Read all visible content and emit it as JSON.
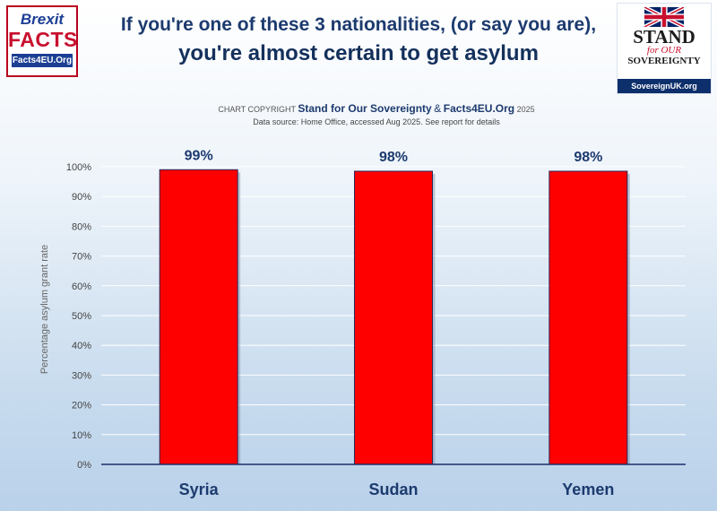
{
  "logos": {
    "left": {
      "line1": "Brexit",
      "line2": "FACTS",
      "line3": "Facts4EU.Org"
    },
    "right": {
      "line1": "STAND",
      "line2": "for OUR",
      "line3": "SOVEREIGNTY",
      "line4": "SovereignUK.org"
    }
  },
  "header": {
    "title_line1": "If you're one of these 3 nationalities, (or say you are),",
    "title_line2": "you're almost certain to get asylum"
  },
  "credits": {
    "prefix": "CHART COPYRIGHT",
    "org1": "Stand for Our Sovereignty",
    "amp": "&",
    "org2": "Facts4EU.Org",
    "year": "2025",
    "source": "Data source: Home Office, accessed Aug 2025.  See report for details"
  },
  "colors": {
    "bar": "#ff0000",
    "bar_border": "#2a2a5a",
    "title": "#1c3a6e",
    "axis": "#1f2d6b"
  },
  "chart_data": {
    "type": "bar",
    "categories": [
      "Syria",
      "Sudan",
      "Yemen"
    ],
    "values": [
      99,
      98.5,
      98.5
    ],
    "data_labels": [
      "99%",
      "98%",
      "98%"
    ],
    "ylabel": "Percentage asylum grant rate",
    "ylim": [
      0,
      100
    ],
    "yticks": [
      "0%",
      "10%",
      "20%",
      "30%",
      "40%",
      "50%",
      "60%",
      "70%",
      "80%",
      "90%",
      "100%"
    ],
    "grid": true,
    "legend": "none"
  }
}
